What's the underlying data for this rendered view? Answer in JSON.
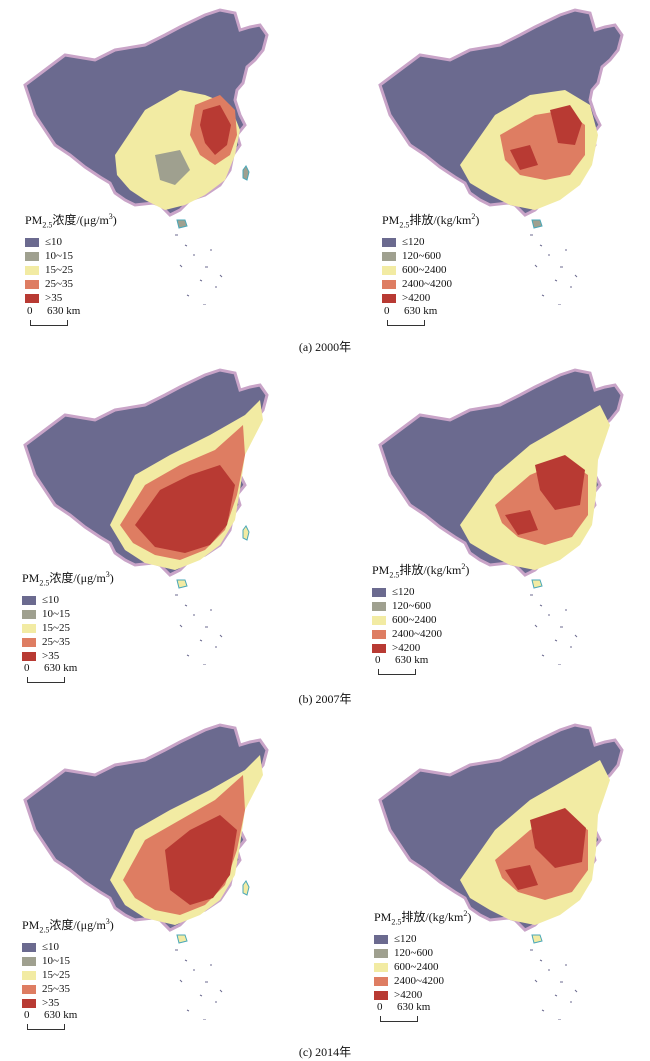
{
  "colors": {
    "c1": "#6b6a8f",
    "c2": "#9fa08f",
    "c3": "#f2eba3",
    "c4": "#de7d62",
    "c5": "#b83a33",
    "border": "#c9a4c8",
    "sea": "#4aa7b7"
  },
  "legend_conc": {
    "title_pre": "PM",
    "title_sub": "2.5",
    "title_post": "浓度/(μg/m",
    "title_sup": "3",
    "title_end": ")",
    "items": [
      "≤10",
      "10~15",
      "15~25",
      "25~35",
      ">35"
    ]
  },
  "legend_emis": {
    "title_pre": "PM",
    "title_sub": "2.5",
    "title_post": "排放/(kg/km",
    "title_sup": "2",
    "title_end": ")",
    "items": [
      "≤120",
      "120~600",
      "600~2400",
      "2400~4200",
      ">4200"
    ]
  },
  "scale": {
    "zero": "0",
    "label": "630 km"
  },
  "panels": [
    {
      "caption": "(a) 2000年"
    },
    {
      "caption": "(b) 2007年"
    },
    {
      "caption": "(c) 2014年"
    }
  ]
}
